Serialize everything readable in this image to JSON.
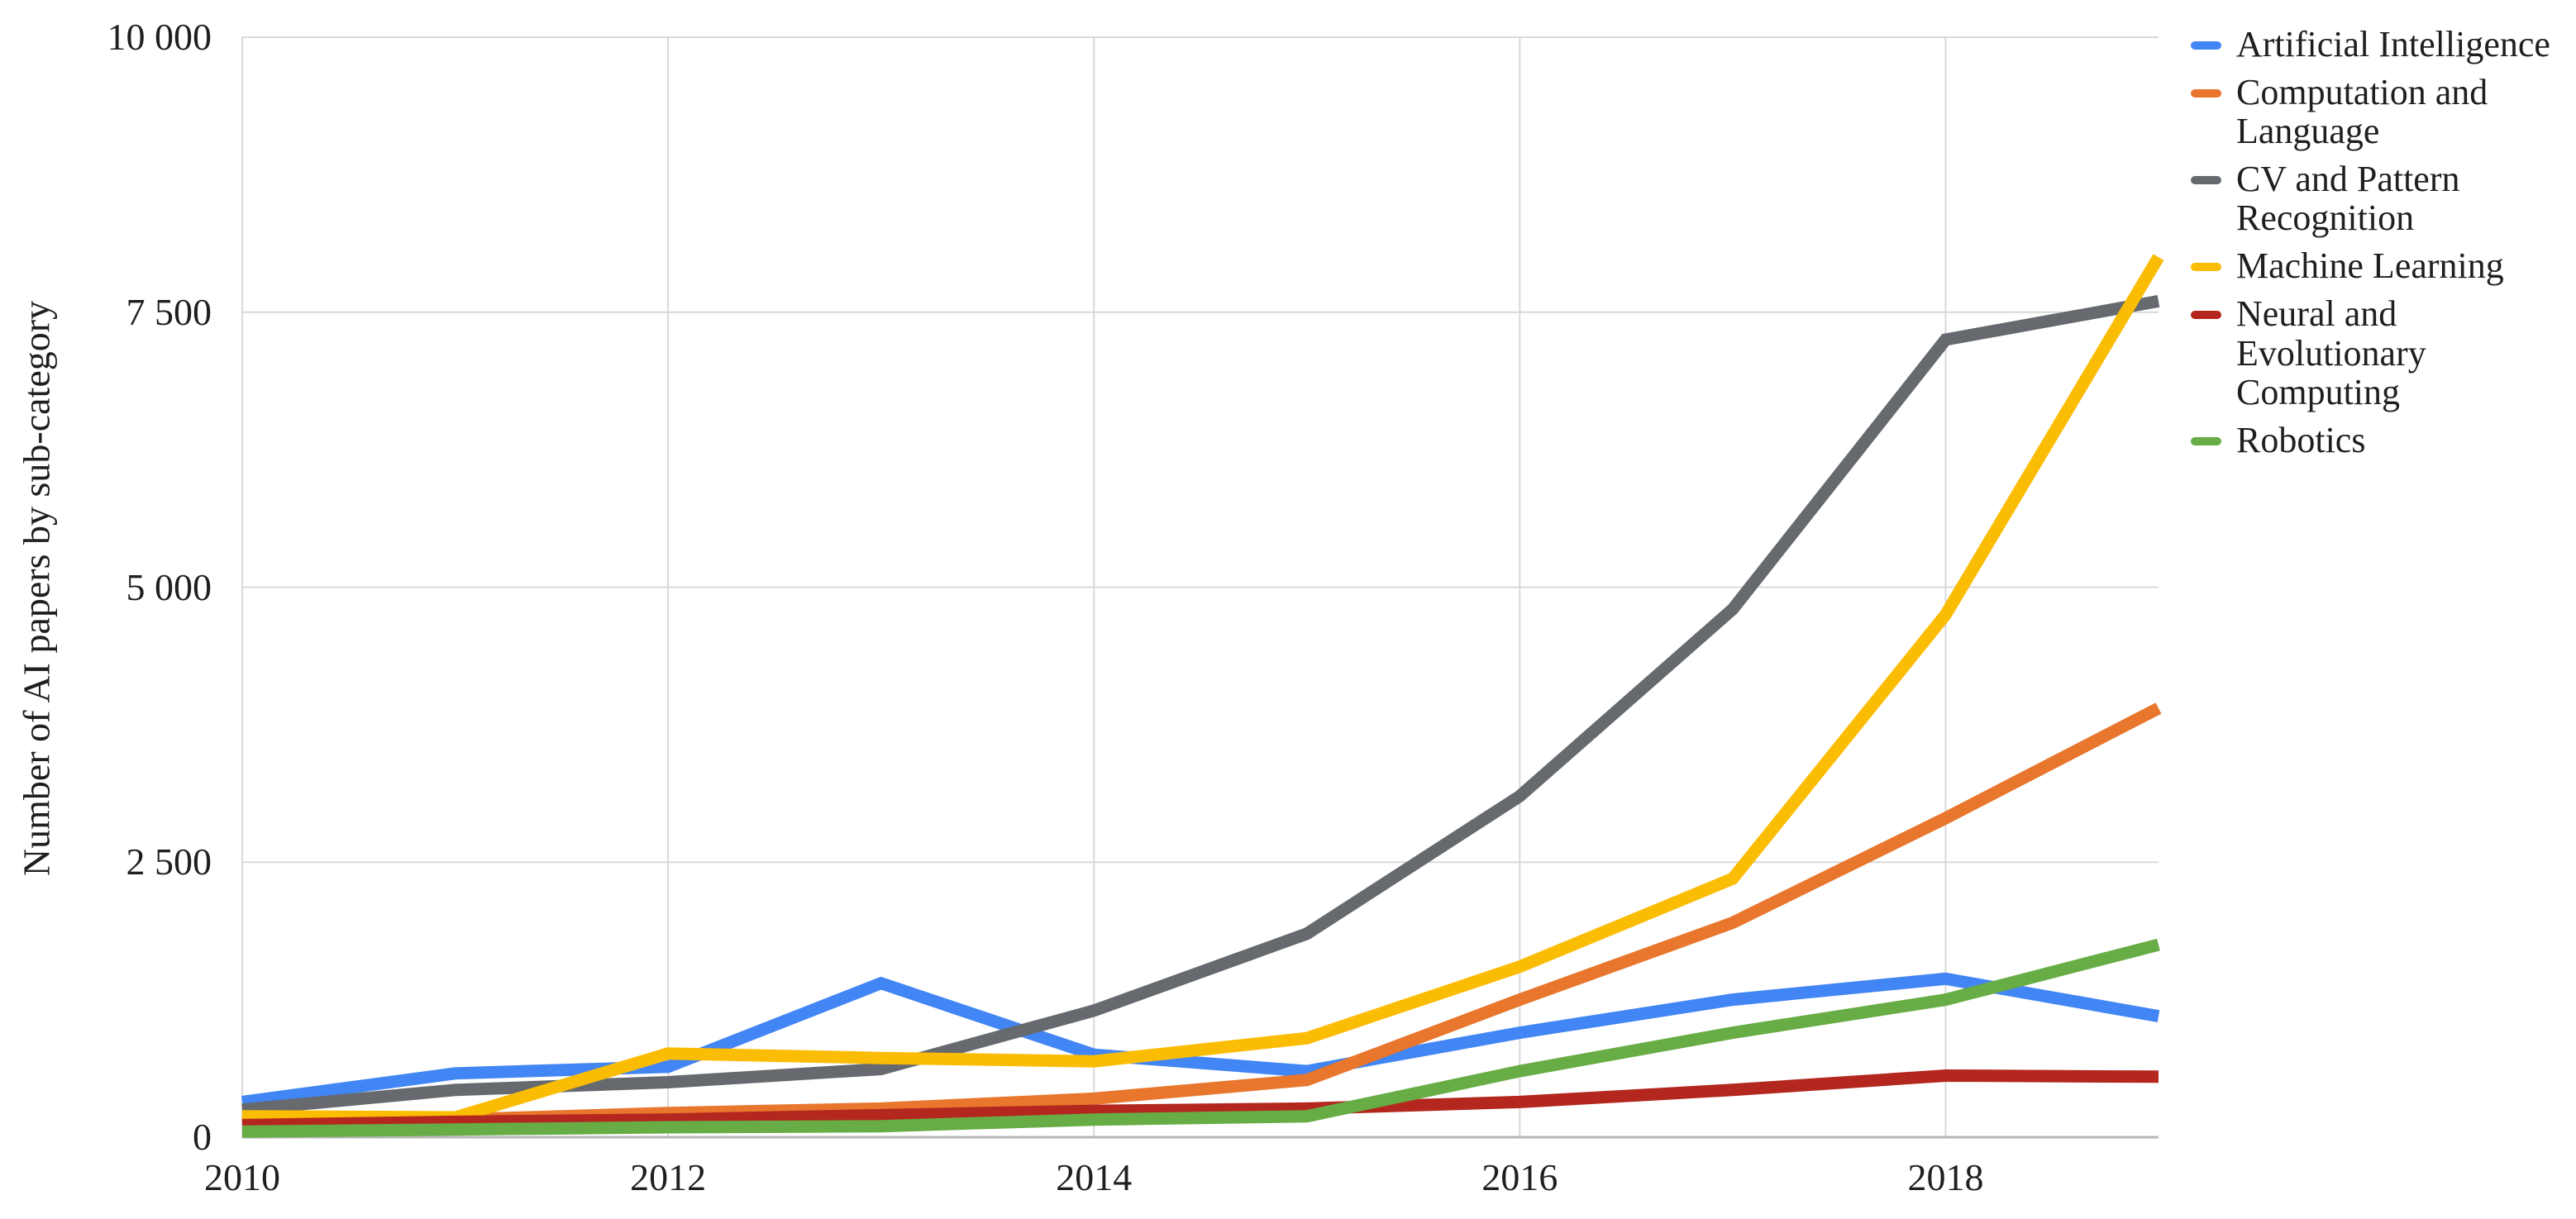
{
  "chart_data": {
    "type": "line",
    "title": "",
    "xlabel": "",
    "ylabel": "Number of AI papers by sub-category",
    "x": [
      2010,
      2011,
      2012,
      2013,
      2014,
      2015,
      2016,
      2017,
      2018,
      2019
    ],
    "xlim": [
      2010,
      2019
    ],
    "ylim": [
      0,
      10000
    ],
    "x_ticks": [
      2010,
      2012,
      2014,
      2016,
      2018
    ],
    "x_tick_labels": [
      "2010",
      "2012",
      "2014",
      "2016",
      "2018"
    ],
    "y_ticks": [
      0,
      2500,
      5000,
      7500,
      10000
    ],
    "y_tick_labels": [
      "0",
      "2 500",
      "5 000",
      "7 500",
      "10 000"
    ],
    "grid": true,
    "legend_position": "right",
    "colors": {
      "grid_line": "#d9d9d9",
      "axis_line": "#b7b7b7",
      "text": "#1f1f1f"
    },
    "series": [
      {
        "name": "Artificial Intelligence",
        "color": "#4285F4",
        "values": [
          320,
          580,
          640,
          1400,
          750,
          600,
          950,
          1250,
          1440,
          1100
        ]
      },
      {
        "name": "Computation and Language",
        "color": "#E8762D",
        "values": [
          130,
          160,
          220,
          260,
          350,
          520,
          1250,
          1950,
          2900,
          3900
        ]
      },
      {
        "name": "CV and Pattern Recognition",
        "color": "#666A6E",
        "values": [
          250,
          430,
          500,
          620,
          1150,
          1850,
          3100,
          4800,
          7250,
          7600
        ]
      },
      {
        "name": "Machine Learning",
        "color": "#FBBC04",
        "values": [
          190,
          180,
          760,
          720,
          690,
          900,
          1550,
          2350,
          4750,
          8000
        ]
      },
      {
        "name": "Neural and Evolutionary Computing",
        "color": "#B3271E",
        "values": [
          110,
          140,
          160,
          200,
          240,
          260,
          320,
          430,
          560,
          550
        ]
      },
      {
        "name": "Robotics",
        "color": "#67AC44",
        "values": [
          50,
          70,
          90,
          100,
          160,
          190,
          600,
          950,
          1250,
          1750
        ]
      }
    ]
  }
}
